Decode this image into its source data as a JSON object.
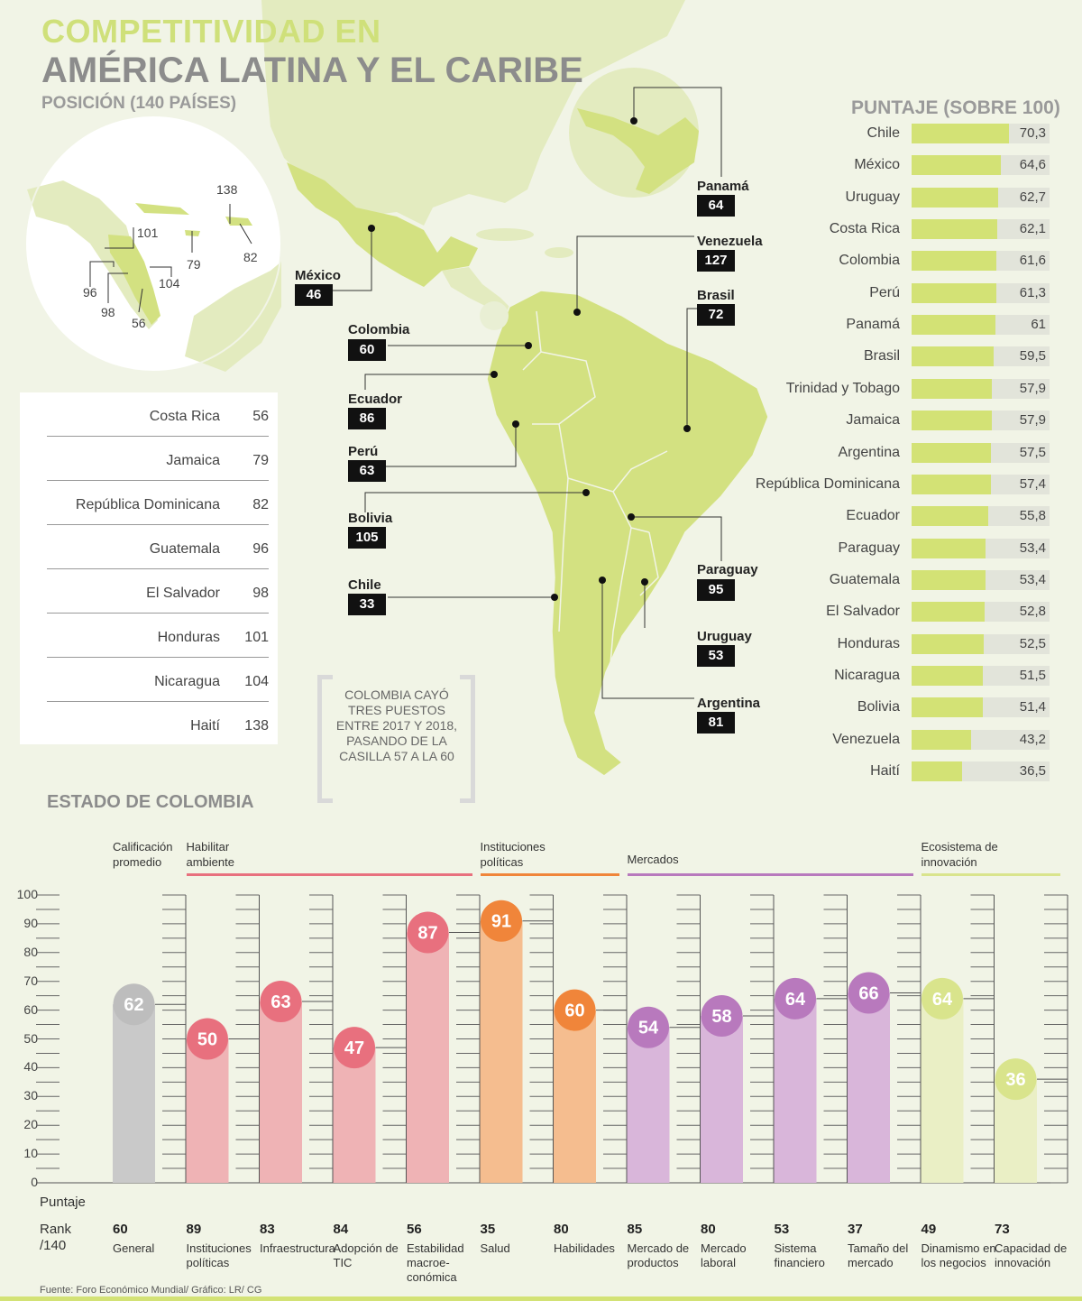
{
  "header": {
    "title_line1": "COMPETITIVIDAD EN",
    "title_line2": "AMÉRICA LATINA Y EL CARIBE",
    "subtitle": "POSICIÓN (140 PAÍSES)"
  },
  "inset_ranks": [
    "138",
    "101",
    "79",
    "82",
    "104",
    "96",
    "98",
    "56"
  ],
  "map_labels": [
    {
      "name": "Panamá",
      "rank": "64"
    },
    {
      "name": "Venezuela",
      "rank": "127"
    },
    {
      "name": "México",
      "rank": "46"
    },
    {
      "name": "Brasil",
      "rank": "72"
    },
    {
      "name": "Colombia",
      "rank": "60"
    },
    {
      "name": "Ecuador",
      "rank": "86"
    },
    {
      "name": "Perú",
      "rank": "63"
    },
    {
      "name": "Bolivia",
      "rank": "105"
    },
    {
      "name": "Paraguay",
      "rank": "95"
    },
    {
      "name": "Chile",
      "rank": "33"
    },
    {
      "name": "Uruguay",
      "rank": "53"
    },
    {
      "name": "Argentina",
      "rank": "81"
    }
  ],
  "rank_table": [
    {
      "name": "Costa Rica",
      "rank": "56"
    },
    {
      "name": "Jamaica",
      "rank": "79"
    },
    {
      "name": "República Dominicana",
      "rank": "82"
    },
    {
      "name": "Guatemala",
      "rank": "96"
    },
    {
      "name": "El Salvador",
      "rank": "98"
    },
    {
      "name": "Honduras",
      "rank": "101"
    },
    {
      "name": "Nicaragua",
      "rank": "104"
    },
    {
      "name": "Haití",
      "rank": "138"
    }
  ],
  "note": "COLOMBIA CAYÓ TRES PUESTOS ENTRE 2017 Y 2018, PASANDO DE LA CASILLA 57 A LA 60",
  "scores": {
    "title": "PUNTAJE (SOBRE 100)",
    "max": 100,
    "rows": [
      {
        "name": "Chile",
        "value": 70.3,
        "label": "70,3"
      },
      {
        "name": "México",
        "value": 64.6,
        "label": "64,6"
      },
      {
        "name": "Uruguay",
        "value": 62.7,
        "label": "62,7"
      },
      {
        "name": "Costa Rica",
        "value": 62.1,
        "label": "62,1"
      },
      {
        "name": "Colombia",
        "value": 61.6,
        "label": "61,6"
      },
      {
        "name": "Perú",
        "value": 61.3,
        "label": "61,3"
      },
      {
        "name": "Panamá",
        "value": 61,
        "label": "61"
      },
      {
        "name": "Brasil",
        "value": 59.5,
        "label": "59,5"
      },
      {
        "name": "Trinidad y Tobago",
        "value": 57.9,
        "label": "57,9"
      },
      {
        "name": "Jamaica",
        "value": 57.9,
        "label": "57,9"
      },
      {
        "name": "Argentina",
        "value": 57.5,
        "label": "57,5"
      },
      {
        "name": "República Dominicana",
        "value": 57.4,
        "label": "57,4"
      },
      {
        "name": "Ecuador",
        "value": 55.8,
        "label": "55,8"
      },
      {
        "name": "Paraguay",
        "value": 53.4,
        "label": "53,4"
      },
      {
        "name": "Guatemala",
        "value": 53.4,
        "label": "53,4"
      },
      {
        "name": "El Salvador",
        "value": 52.8,
        "label": "52,8"
      },
      {
        "name": "Honduras",
        "value": 52.5,
        "label": "52,5"
      },
      {
        "name": "Nicaragua",
        "value": 51.5,
        "label": "51,5"
      },
      {
        "name": "Bolivia",
        "value": 51.4,
        "label": "51,4"
      },
      {
        "name": "Venezuela",
        "value": 43.2,
        "label": "43,2"
      },
      {
        "name": "Haití",
        "value": 36.5,
        "label": "36,5"
      }
    ]
  },
  "colombia": {
    "title": "ESTADO DE COLOMBIA",
    "y_ticks": [
      "0",
      "10",
      "20",
      "30",
      "40",
      "50",
      "60",
      "70",
      "80",
      "90",
      "100"
    ],
    "ylim": [
      0,
      100
    ],
    "puntaje_label": "Puntaje",
    "rank_label": "Rank\n/140",
    "groups": [
      {
        "label": "Calificación promedio",
        "color": "#c8c8c8",
        "span": [
          0,
          0
        ]
      },
      {
        "label": "Habilitar ambiente",
        "color": "#e8707e",
        "span": [
          1,
          4
        ]
      },
      {
        "label": "Instituciones políticas",
        "color": "#f0853a",
        "span": [
          5,
          6
        ]
      },
      {
        "label": "Mercados",
        "color": "#b879bd",
        "span": [
          7,
          10
        ]
      },
      {
        "label": "Ecosistema de innovación",
        "color": "#d9e48c",
        "span": [
          11,
          12
        ]
      }
    ],
    "pillars": [
      {
        "name": "General",
        "score": 62,
        "rank": "60",
        "group": 0
      },
      {
        "name": "Instituciones políticas",
        "score": 50,
        "rank": "89",
        "group": 1
      },
      {
        "name": "Infraestructura",
        "score": 63,
        "rank": "83",
        "group": 1
      },
      {
        "name": "Adopción de TIC",
        "score": 47,
        "rank": "84",
        "group": 1
      },
      {
        "name": "Estabilidad macroe-conómica",
        "score": 87,
        "rank": "56",
        "group": 1
      },
      {
        "name": "Salud",
        "score": 91,
        "rank": "35",
        "group": 2
      },
      {
        "name": "Habilidades",
        "score": 60,
        "rank": "80",
        "group": 2
      },
      {
        "name": "Mercado de productos",
        "score": 54,
        "rank": "85",
        "group": 3
      },
      {
        "name": "Mercado laboral",
        "score": 58,
        "rank": "80",
        "group": 3
      },
      {
        "name": "Sistema financiero",
        "score": 64,
        "rank": "53",
        "group": 3
      },
      {
        "name": "Tamaño del mercado",
        "score": 66,
        "rank": "37",
        "group": 3
      },
      {
        "name": "Dinamismo en los negocios",
        "score": 64,
        "rank": "49",
        "group": 4
      },
      {
        "name": "Capacidad de innovación",
        "score": 36,
        "rank": "73",
        "group": 4
      }
    ]
  },
  "footer": "Fuente: Foro Económico Mundial/ Gráfico: LR/ CG",
  "chart_data": [
    {
      "type": "bar",
      "title": "PUNTAJE (SOBRE 100)",
      "categories": [
        "Chile",
        "México",
        "Uruguay",
        "Costa Rica",
        "Colombia",
        "Perú",
        "Panamá",
        "Brasil",
        "Trinidad y Tobago",
        "Jamaica",
        "Argentina",
        "República Dominicana",
        "Ecuador",
        "Paraguay",
        "Guatemala",
        "El Salvador",
        "Honduras",
        "Nicaragua",
        "Bolivia",
        "Venezuela",
        "Haití"
      ],
      "values": [
        70.3,
        64.6,
        62.7,
        62.1,
        61.6,
        61.3,
        61,
        59.5,
        57.9,
        57.9,
        57.5,
        57.4,
        55.8,
        53.4,
        53.4,
        52.8,
        52.5,
        51.5,
        51.4,
        43.2,
        36.5
      ],
      "xlim": [
        0,
        100
      ]
    },
    {
      "type": "bar",
      "title": "ESTADO DE COLOMBIA",
      "categories": [
        "General",
        "Instituciones políticas",
        "Infraestructura",
        "Adopción de TIC",
        "Estabilidad macroe-conómica",
        "Salud",
        "Habilidades",
        "Mercado de productos",
        "Mercado laboral",
        "Sistema financiero",
        "Tamaño del mercado",
        "Dinamismo en los negocios",
        "Capacidad de innovación"
      ],
      "values": [
        62,
        50,
        63,
        47,
        87,
        91,
        60,
        54,
        58,
        64,
        66,
        64,
        36
      ],
      "ranks": [
        60,
        89,
        83,
        84,
        56,
        35,
        80,
        85,
        80,
        53,
        37,
        49,
        73
      ],
      "ylabel": "Puntaje",
      "ylim": [
        0,
        100
      ]
    }
  ]
}
